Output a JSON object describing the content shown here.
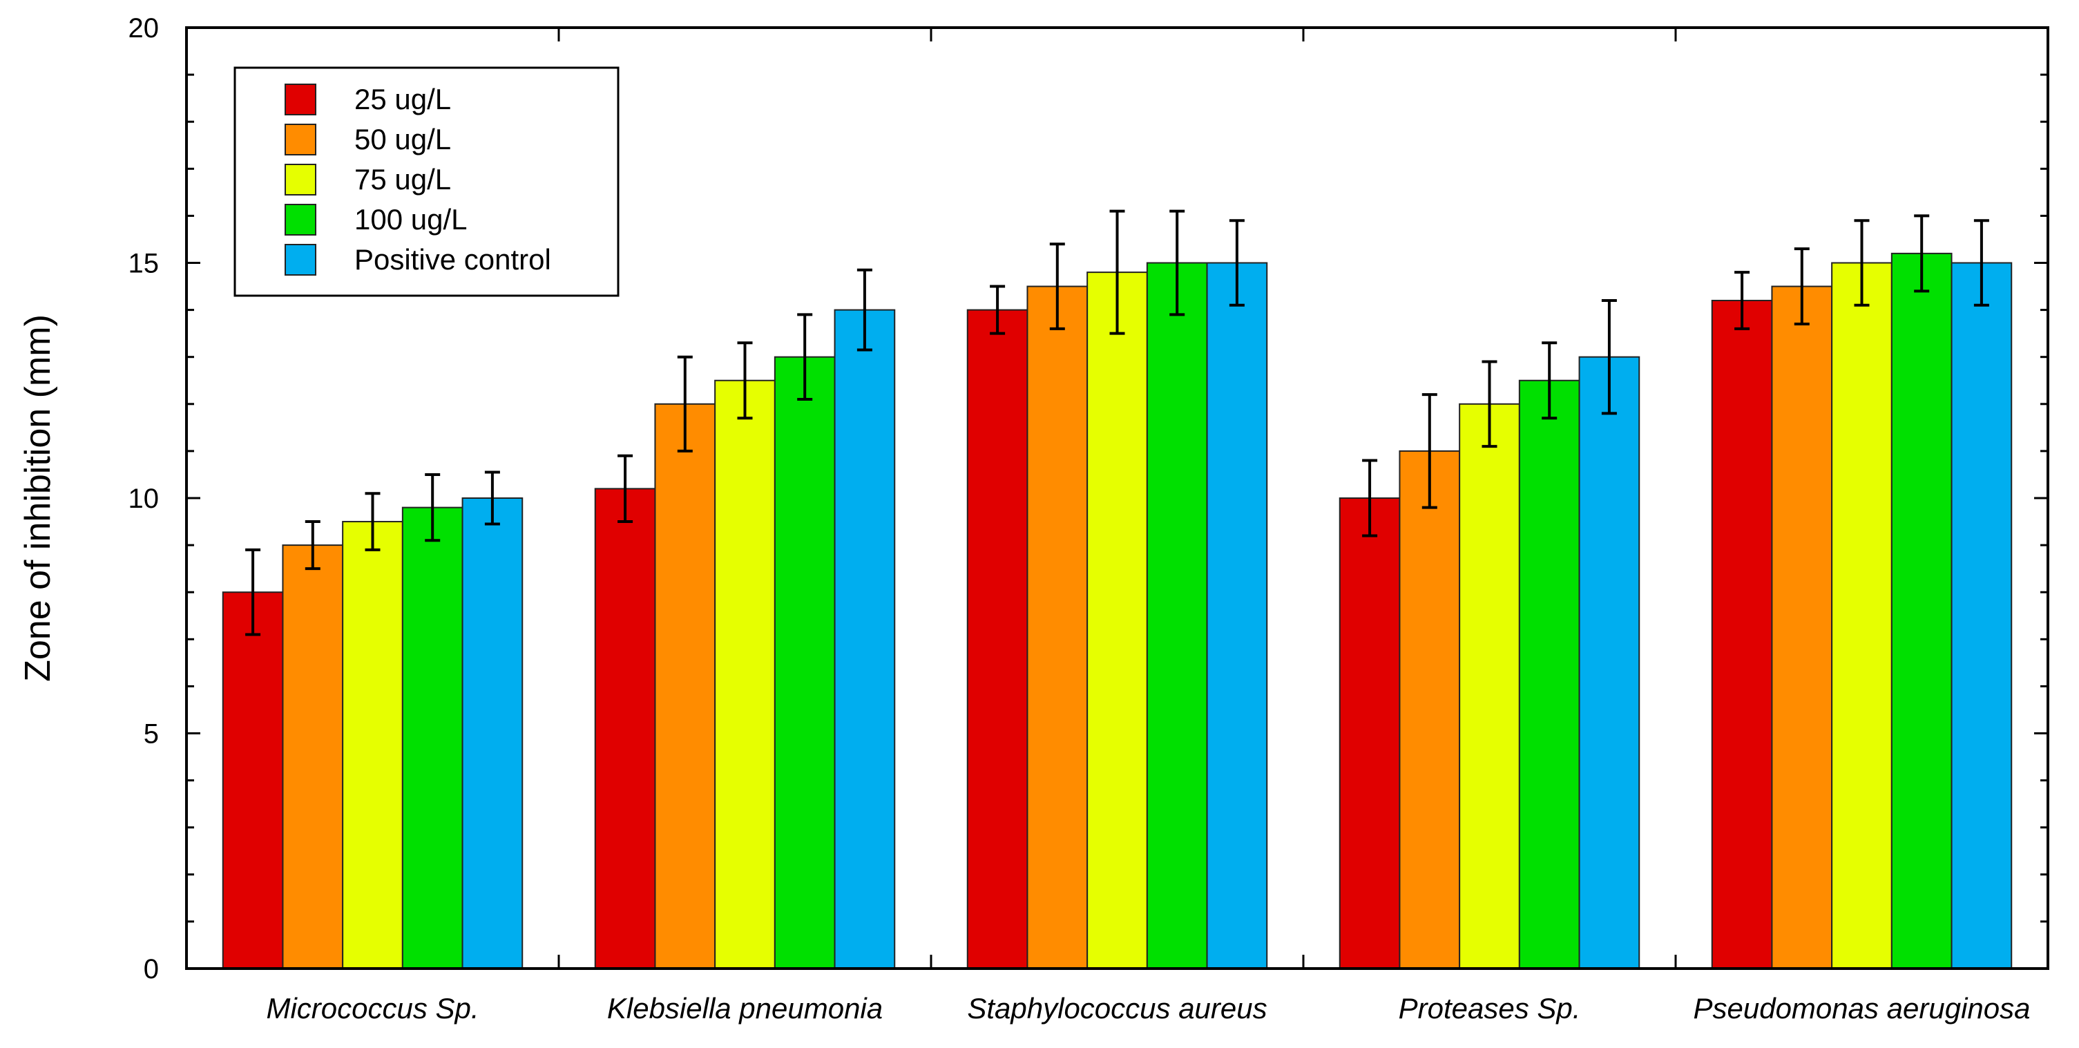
{
  "chart_data": {
    "type": "bar",
    "title": "",
    "xlabel": "",
    "ylabel": "Zone of inhibition (mm)",
    "ylim": [
      0,
      20
    ],
    "yticks": [
      0,
      5,
      10,
      15,
      20
    ],
    "grid": false,
    "legend_position": "top-left",
    "categories": [
      "Micrococcus Sp.",
      "Klebsiella pneumonia",
      "Staphylococcus aureus",
      "Proteases Sp.",
      "Pseudomonas aeruginosa"
    ],
    "series": [
      {
        "name": "25 ug/L",
        "color": "#e00000",
        "values": [
          8.0,
          10.2,
          14.0,
          10.0,
          14.2
        ],
        "errors": [
          0.9,
          0.7,
          0.5,
          0.8,
          0.6
        ]
      },
      {
        "name": "50 ug/L",
        "color": "#ff8c00",
        "values": [
          9.0,
          12.0,
          14.5,
          11.0,
          14.5
        ],
        "errors": [
          0.5,
          1.0,
          0.9,
          1.2,
          0.8
        ]
      },
      {
        "name": "75 ug/L",
        "color": "#e6ff00",
        "values": [
          9.5,
          12.5,
          14.8,
          12.0,
          15.0
        ],
        "errors": [
          0.6,
          0.8,
          1.3,
          0.9,
          0.9
        ]
      },
      {
        "name": "100 ug/L",
        "color": "#00e000",
        "values": [
          9.8,
          13.0,
          15.0,
          12.5,
          15.2
        ],
        "errors": [
          0.7,
          0.9,
          1.1,
          0.8,
          0.8
        ]
      },
      {
        "name": "Positive control",
        "color": "#00aeef",
        "values": [
          10.0,
          14.0,
          15.0,
          13.0,
          15.0
        ],
        "errors": [
          0.55,
          0.85,
          0.9,
          1.2,
          0.9
        ]
      }
    ]
  }
}
